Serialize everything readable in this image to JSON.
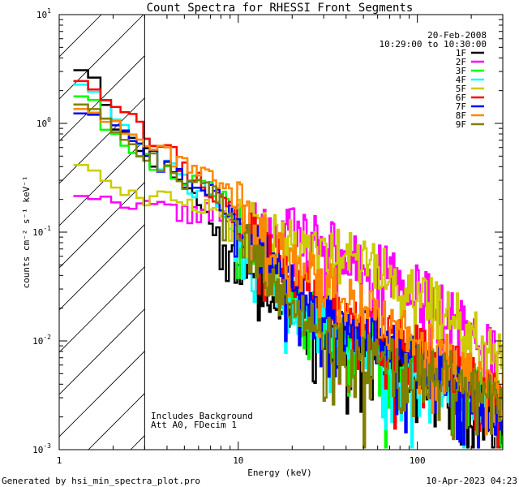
{
  "chart_data": {
    "type": "line",
    "title": "Count Spectra for RHESSI Front Segments",
    "xlabel": "Energy (keV)",
    "ylabel": "counts cm⁻² s⁻¹ keV⁻¹",
    "xscale": "log",
    "yscale": "log",
    "xlim": [
      1,
      300
    ],
    "ylim": [
      0.001,
      10
    ],
    "x_ticks": [
      {
        "value": 1,
        "label": "1"
      },
      {
        "value": 10,
        "label": "10"
      },
      {
        "value": 100,
        "label": "100"
      }
    ],
    "y_ticks": [
      {
        "value": 0.001,
        "base": "10",
        "exp": "-3"
      },
      {
        "value": 0.01,
        "base": "10",
        "exp": "-2"
      },
      {
        "value": 0.1,
        "base": "10",
        "exp": "-1"
      },
      {
        "value": 1,
        "base": "10",
        "exp": "0"
      },
      {
        "value": 10,
        "base": "10",
        "exp": "1"
      }
    ],
    "date": "20-Feb-2008",
    "time_range": "10:29:00 to 10:30:00",
    "annotations": [
      "Includes Background",
      "Att A0, FDecim 1"
    ],
    "hatched_region": {
      "x_from": 1,
      "x_to": 3
    },
    "vertical_line_x": 3,
    "legend_position": "top-right",
    "series": [
      {
        "name": "1F",
        "color": "#000000",
        "seed": 11,
        "anchors": [
          [
            1.25,
            3.4
          ],
          [
            1.6,
            2.7
          ],
          [
            2,
            1.0
          ],
          [
            3,
            0.55
          ],
          [
            5,
            0.3
          ],
          [
            8,
            0.09
          ],
          [
            12,
            0.04
          ],
          [
            20,
            0.02
          ],
          [
            40,
            0.009
          ],
          [
            80,
            0.006
          ],
          [
            150,
            0.004
          ],
          [
            280,
            0.0013
          ]
        ]
      },
      {
        "name": "2F",
        "color": "#ff00ff",
        "seed": 22,
        "anchors": [
          [
            1.25,
            0.23
          ],
          [
            2,
            0.19
          ],
          [
            3,
            0.17
          ],
          [
            5,
            0.15
          ],
          [
            8,
            0.15
          ],
          [
            10,
            0.14
          ],
          [
            15,
            0.12
          ],
          [
            30,
            0.08
          ],
          [
            60,
            0.05
          ],
          [
            100,
            0.03
          ],
          [
            200,
            0.012
          ],
          [
            280,
            0.008
          ]
        ]
      },
      {
        "name": "3F",
        "color": "#00ff00",
        "seed": 33,
        "anchors": [
          [
            1.25,
            1.9
          ],
          [
            1.6,
            1.7
          ],
          [
            1.8,
            0.9
          ],
          [
            3,
            0.45
          ],
          [
            5,
            0.3
          ],
          [
            8,
            0.22
          ],
          [
            12,
            0.08
          ],
          [
            20,
            0.025
          ],
          [
            40,
            0.012
          ],
          [
            80,
            0.007
          ],
          [
            150,
            0.005
          ],
          [
            280,
            0.003
          ]
        ]
      },
      {
        "name": "4F",
        "color": "#00ffff",
        "seed": 44,
        "anchors": [
          [
            1.25,
            2.5
          ],
          [
            1.6,
            2.0
          ],
          [
            2,
            1.2
          ],
          [
            3,
            0.6
          ],
          [
            5,
            0.3
          ],
          [
            8,
            0.18
          ],
          [
            12,
            0.06
          ],
          [
            20,
            0.02
          ],
          [
            40,
            0.01
          ],
          [
            80,
            0.005
          ],
          [
            150,
            0.004
          ],
          [
            280,
            0.003
          ]
        ]
      },
      {
        "name": "5F",
        "color": "#cccc00",
        "seed": 55,
        "anchors": [
          [
            1.25,
            0.45
          ],
          [
            1.6,
            0.38
          ],
          [
            2,
            0.25
          ],
          [
            3,
            0.22
          ],
          [
            5,
            0.2
          ],
          [
            10,
            0.14
          ],
          [
            15,
            0.1
          ],
          [
            30,
            0.07
          ],
          [
            60,
            0.05
          ],
          [
            100,
            0.03
          ],
          [
            200,
            0.015
          ],
          [
            280,
            0.007
          ]
        ]
      },
      {
        "name": "6F",
        "color": "#ff0000",
        "seed": 66,
        "anchors": [
          [
            1.25,
            2.7
          ],
          [
            1.6,
            2.1
          ],
          [
            2,
            1.6
          ],
          [
            3,
            0.9
          ],
          [
            5,
            0.4
          ],
          [
            8,
            0.2
          ],
          [
            12,
            0.09
          ],
          [
            20,
            0.04
          ],
          [
            40,
            0.018
          ],
          [
            80,
            0.01
          ],
          [
            150,
            0.006
          ],
          [
            280,
            0.003
          ]
        ]
      },
      {
        "name": "7F",
        "color": "#0000ff",
        "seed": 77,
        "anchors": [
          [
            1.25,
            1.3
          ],
          [
            1.6,
            1.25
          ],
          [
            2,
            1.0
          ],
          [
            3,
            0.6
          ],
          [
            5,
            0.3
          ],
          [
            8,
            0.2
          ],
          [
            12,
            0.08
          ],
          [
            20,
            0.03
          ],
          [
            40,
            0.014
          ],
          [
            80,
            0.008
          ],
          [
            150,
            0.005
          ],
          [
            280,
            0.002
          ]
        ]
      },
      {
        "name": "8F",
        "color": "#ff8800",
        "seed": 88,
        "anchors": [
          [
            1.25,
            1.45
          ],
          [
            1.6,
            1.3
          ],
          [
            2,
            1.0
          ],
          [
            3,
            0.7
          ],
          [
            5,
            0.45
          ],
          [
            8,
            0.3
          ],
          [
            12,
            0.12
          ],
          [
            20,
            0.05
          ],
          [
            40,
            0.025
          ],
          [
            80,
            0.012
          ],
          [
            150,
            0.007
          ],
          [
            280,
            0.003
          ]
        ]
      },
      {
        "name": "9F",
        "color": "#808000",
        "seed": 99,
        "anchors": [
          [
            1.25,
            1.6
          ],
          [
            1.6,
            1.4
          ],
          [
            2,
            0.9
          ],
          [
            3,
            0.5
          ],
          [
            5,
            0.3
          ],
          [
            8,
            0.2
          ],
          [
            12,
            0.06
          ],
          [
            20,
            0.02
          ],
          [
            40,
            0.008
          ],
          [
            80,
            0.006
          ],
          [
            150,
            0.005
          ],
          [
            280,
            0.003
          ]
        ]
      }
    ]
  },
  "footer": {
    "generated_by": "Generated by hsi_min_spectra_plot.pro",
    "timestamp": "10-Apr-2023 04:23"
  }
}
